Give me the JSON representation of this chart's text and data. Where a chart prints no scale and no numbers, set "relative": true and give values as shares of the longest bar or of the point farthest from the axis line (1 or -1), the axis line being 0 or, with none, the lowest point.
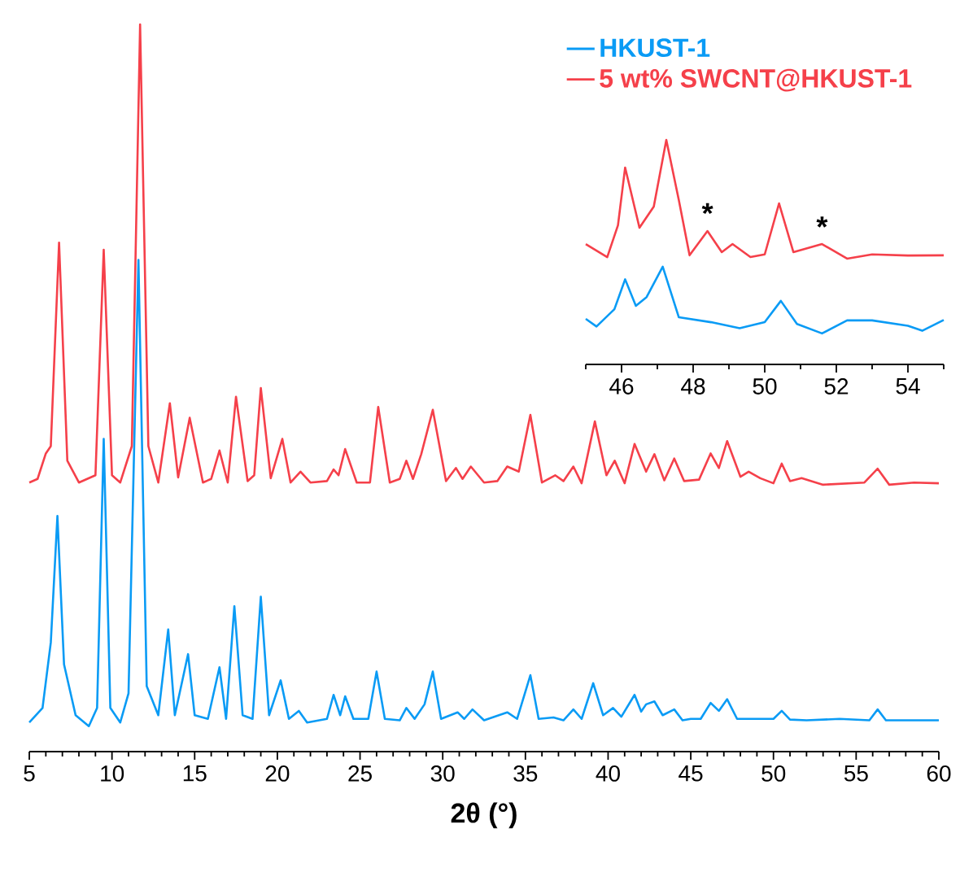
{
  "chart_data": [
    {
      "type": "line",
      "relative": true,
      "xlabel": "**2θ (°)**",
      "legend": "top right",
      "xlim": [
        5,
        60
      ],
      "xticks": [
        5,
        10,
        15,
        20,
        25,
        30,
        35,
        40,
        45,
        50,
        55,
        60,
        {
          "value": 6,
          "label": null
        },
        {
          "value": 7,
          "label": null
        },
        {
          "value": 8,
          "label": null
        },
        {
          "value": 9,
          "label": null
        },
        {
          "value": 11,
          "label": null
        },
        {
          "value": 12,
          "label": null
        },
        {
          "value": 13,
          "label": null
        },
        {
          "value": 14,
          "label": null
        },
        {
          "value": 16,
          "label": null
        },
        {
          "value": 17,
          "label": null
        },
        {
          "value": 18,
          "label": null
        },
        {
          "value": 19,
          "label": null
        },
        {
          "value": 21,
          "label": null
        },
        {
          "value": 22,
          "label": null
        },
        {
          "value": 23,
          "label": null
        },
        {
          "value": 24,
          "label": null
        },
        {
          "value": 26,
          "label": null
        },
        {
          "value": 27,
          "label": null
        },
        {
          "value": 28,
          "label": null
        },
        {
          "value": 29,
          "label": null
        },
        {
          "value": 31,
          "label": null
        },
        {
          "value": 32,
          "label": null
        },
        {
          "value": 33,
          "label": null
        },
        {
          "value": 34,
          "label": null
        },
        {
          "value": 36,
          "label": null
        },
        {
          "value": 37,
          "label": null
        },
        {
          "value": 38,
          "label": null
        },
        {
          "value": 39,
          "label": null
        },
        {
          "value": 41,
          "label": null
        },
        {
          "value": 42,
          "label": null
        },
        {
          "value": 43,
          "label": null
        },
        {
          "value": 44,
          "label": null
        },
        {
          "value": 46,
          "label": null
        },
        {
          "value": 47,
          "label": null
        },
        {
          "value": 48,
          "label": null
        },
        {
          "value": 49,
          "label": null
        },
        {
          "value": 51,
          "label": null
        },
        {
          "value": 52,
          "label": null
        },
        {
          "value": 53,
          "label": null
        },
        {
          "value": 54,
          "label": null
        },
        {
          "value": 56,
          "label": null
        },
        {
          "value": 57,
          "label": null
        },
        {
          "value": 58,
          "label": null
        },
        {
          "value": 59,
          "label": null
        }
      ],
      "tick_labels": "x",
      "series": [
        {
          "name": "HKUST-1",
          "color": "#0a9bf5",
          "x": [
            5.0,
            5.8,
            6.3,
            6.7,
            7.1,
            7.8,
            8.6,
            9.1,
            9.5,
            9.9,
            10.5,
            11.0,
            11.6,
            12.1,
            12.8,
            13.4,
            13.8,
            14.6,
            15.0,
            15.8,
            16.5,
            16.9,
            17.4,
            17.9,
            18.5,
            19.0,
            19.5,
            20.2,
            20.7,
            21.3,
            21.8,
            23.0,
            23.4,
            23.8,
            24.1,
            24.6,
            25.5,
            26.0,
            26.5,
            27.4,
            27.8,
            28.3,
            28.9,
            29.4,
            29.9,
            30.9,
            31.3,
            31.8,
            32.5,
            33.9,
            34.5,
            35.3,
            35.8,
            36.7,
            37.3,
            37.9,
            38.4,
            39.1,
            39.7,
            40.3,
            40.8,
            41.6,
            42.0,
            42.3,
            42.8,
            43.3,
            44.0,
            44.5,
            45.0,
            45.6,
            46.2,
            46.7,
            47.2,
            47.8,
            48.5,
            50.0,
            50.5,
            51.0,
            52.0,
            54.0,
            55.8,
            56.3,
            56.8,
            58.0,
            60.0
          ],
          "values": [
            0.04,
            0.06,
            0.15,
            0.324,
            0.12,
            0.05,
            0.035,
            0.06,
            0.43,
            0.06,
            0.04,
            0.08,
            0.676,
            0.09,
            0.05,
            0.168,
            0.05,
            0.134,
            0.05,
            0.045,
            0.116,
            0.045,
            0.2,
            0.05,
            0.045,
            0.213,
            0.05,
            0.098,
            0.045,
            0.056,
            0.04,
            0.045,
            0.078,
            0.05,
            0.076,
            0.045,
            0.045,
            0.11,
            0.045,
            0.043,
            0.06,
            0.045,
            0.065,
            0.11,
            0.045,
            0.054,
            0.045,
            0.058,
            0.043,
            0.054,
            0.045,
            0.105,
            0.045,
            0.047,
            0.043,
            0.058,
            0.045,
            0.094,
            0.05,
            0.06,
            0.048,
            0.078,
            0.055,
            0.065,
            0.069,
            0.05,
            0.058,
            0.043,
            0.045,
            0.045,
            0.067,
            0.056,
            0.072,
            0.045,
            0.045,
            0.045,
            0.056,
            0.044,
            0.043,
            0.045,
            0.043,
            0.058,
            0.043,
            0.043,
            0.043
          ]
        },
        {
          "name": "5 wt% SWCNT@HKUST-1",
          "color": "#f5404a",
          "x": [
            5.0,
            5.5,
            6.0,
            6.3,
            6.8,
            7.3,
            8.0,
            9.0,
            9.5,
            10.0,
            10.5,
            11.2,
            11.7,
            12.2,
            12.8,
            13.5,
            14.0,
            14.7,
            15.5,
            16.0,
            16.5,
            17.0,
            17.5,
            18.2,
            18.6,
            19.0,
            19.6,
            20.3,
            20.8,
            21.4,
            22.0,
            23.0,
            23.4,
            23.7,
            24.1,
            24.8,
            25.6,
            26.1,
            26.8,
            27.4,
            27.8,
            28.2,
            28.7,
            29.4,
            30.2,
            30.8,
            31.2,
            31.7,
            32.5,
            33.3,
            33.9,
            34.6,
            35.3,
            36.0,
            36.8,
            37.3,
            37.9,
            38.4,
            39.2,
            39.9,
            40.4,
            41.0,
            41.6,
            42.3,
            42.8,
            43.4,
            44.0,
            44.6,
            45.5,
            46.2,
            46.7,
            47.2,
            48.0,
            48.5,
            49.2,
            50.0,
            50.5,
            51.0,
            51.7,
            53.0,
            55.5,
            56.3,
            57.0,
            58.5,
            60.0
          ],
          "values": [
            0.37,
            0.375,
            0.41,
            0.42,
            0.7,
            0.4,
            0.37,
            0.38,
            0.69,
            0.38,
            0.37,
            0.42,
            1.0,
            0.42,
            0.37,
            0.479,
            0.377,
            0.459,
            0.37,
            0.375,
            0.414,
            0.37,
            0.488,
            0.372,
            0.38,
            0.5,
            0.376,
            0.43,
            0.37,
            0.385,
            0.37,
            0.372,
            0.388,
            0.38,
            0.416,
            0.37,
            0.37,
            0.474,
            0.37,
            0.375,
            0.4,
            0.375,
            0.409,
            0.47,
            0.372,
            0.39,
            0.375,
            0.392,
            0.37,
            0.372,
            0.392,
            0.385,
            0.463,
            0.37,
            0.38,
            0.372,
            0.392,
            0.369,
            0.454,
            0.38,
            0.4,
            0.369,
            0.423,
            0.385,
            0.409,
            0.373,
            0.403,
            0.372,
            0.374,
            0.41,
            0.39,
            0.427,
            0.378,
            0.385,
            0.376,
            0.369,
            0.396,
            0.372,
            0.376,
            0.367,
            0.37,
            0.389,
            0.367,
            0.37,
            0.369
          ]
        }
      ]
    },
    {
      "type": "line",
      "relative": true,
      "xlim": [
        45,
        55
      ],
      "xticks": [
        46,
        48,
        50,
        52,
        54,
        {
          "value": 45,
          "label": null
        },
        {
          "value": 47,
          "label": null
        },
        {
          "value": 49,
          "label": null
        },
        {
          "value": 51,
          "label": null
        },
        {
          "value": 53,
          "label": null
        },
        {
          "value": 55,
          "label": null
        }
      ],
      "tick_labels": "x",
      "annotations": [
        {
          "text": "*",
          "x": 48.4,
          "y": 0.62
        },
        {
          "text": "*",
          "x": 51.6,
          "y": 0.56
        }
      ],
      "series": [
        {
          "color": "#0a9bf5",
          "x": [
            45.0,
            45.3,
            45.8,
            46.1,
            46.4,
            46.7,
            47.15,
            47.6,
            48.5,
            49.3,
            50.0,
            50.45,
            50.9,
            51.6,
            52.3,
            53.0,
            54.0,
            54.4,
            55.0
          ],
          "values": [
            0.203,
            0.169,
            0.246,
            0.379,
            0.261,
            0.3,
            0.435,
            0.21,
            0.188,
            0.161,
            0.188,
            0.283,
            0.18,
            0.138,
            0.196,
            0.196,
            0.172,
            0.15,
            0.198
          ]
        },
        {
          "color": "#f5404a",
          "x": [
            45.0,
            45.6,
            45.9,
            46.1,
            46.5,
            46.9,
            47.25,
            47.6,
            47.9,
            48.4,
            48.8,
            49.1,
            49.6,
            50.0,
            50.4,
            50.8,
            51.6,
            52.3,
            53.0,
            54.0,
            55.0
          ],
          "values": [
            0.536,
            0.478,
            0.62,
            0.877,
            0.609,
            0.703,
            1.0,
            0.732,
            0.486,
            0.594,
            0.5,
            0.536,
            0.478,
            0.49,
            0.717,
            0.5,
            0.536,
            0.471,
            0.49,
            0.485,
            0.486
          ]
        }
      ]
    }
  ]
}
